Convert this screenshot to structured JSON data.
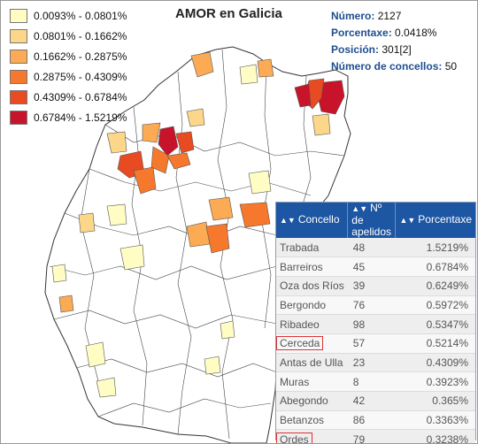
{
  "title": "AMOR en Galicia",
  "legend": [
    {
      "label": "0.0093% - 0.0801%",
      "color": "#fffdc4"
    },
    {
      "label": "0.0801% - 0.1662%",
      "color": "#fdd789"
    },
    {
      "label": "0.1662% - 0.2875%",
      "color": "#fcaa53"
    },
    {
      "label": "0.2875% - 0.4309%",
      "color": "#f6782c"
    },
    {
      "label": "0.4309% - 0.6784%",
      "color": "#e84a22"
    },
    {
      "label": "0.6784% - 1.5219%",
      "color": "#c8142a"
    }
  ],
  "stats": {
    "numero_label": "Número:",
    "numero_value": "2127",
    "porcentaxe_label": "Porcentaxe:",
    "porcentaxe_value": "0.0418%",
    "posicion_label": "Posición:",
    "posicion_value": "301[2]",
    "concellos_label": "Número de concellos:",
    "concellos_value": "50"
  },
  "table": {
    "headers": [
      "Concello",
      "Nº de apelidos",
      "Porcentaxe"
    ],
    "sort_icon": "sort-icon",
    "rows": [
      {
        "concello": "Trabada",
        "n": "48",
        "pct": "1.5219%",
        "highlight": false
      },
      {
        "concello": "Barreiros",
        "n": "45",
        "pct": "0.6784%",
        "highlight": false
      },
      {
        "concello": "Oza dos Ríos",
        "n": "39",
        "pct": "0.6249%",
        "highlight": false
      },
      {
        "concello": "Bergondo",
        "n": "76",
        "pct": "0.5972%",
        "highlight": false
      },
      {
        "concello": "Ribadeo",
        "n": "98",
        "pct": "0.5347%",
        "highlight": false
      },
      {
        "concello": "Cerceda",
        "n": "57",
        "pct": "0.5214%",
        "highlight": true
      },
      {
        "concello": "Antas de Ulla",
        "n": "23",
        "pct": "0.4309%",
        "highlight": false
      },
      {
        "concello": "Muras",
        "n": "8",
        "pct": "0.3923%",
        "highlight": false
      },
      {
        "concello": "Abegondo",
        "n": "42",
        "pct": "0.365%",
        "highlight": false
      },
      {
        "concello": "Betanzos",
        "n": "86",
        "pct": "0.3363%",
        "highlight": false
      },
      {
        "concello": "Ordes",
        "n": "79",
        "pct": "0.3238%",
        "highlight": true
      }
    ]
  }
}
